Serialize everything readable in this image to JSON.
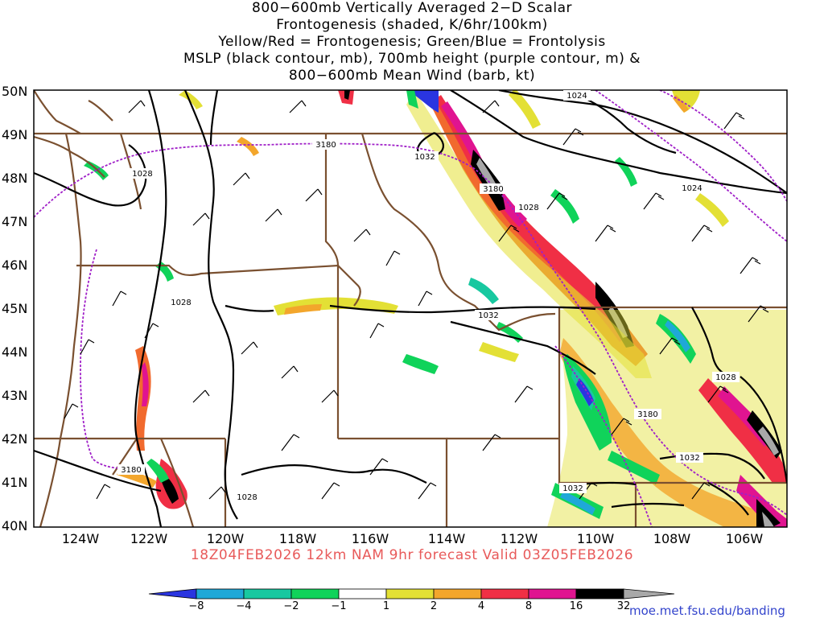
{
  "title": {
    "lines": [
      "800−600mb Vertically Averaged 2−D Scalar",
      "Frontogenesis (shaded, K/6hr/100km)",
      "Yellow/Red = Frontogenesis;  Green/Blue = Frontolysis",
      "MSLP (black contour, mb), 700mb height (purple contour, m) &",
      "800−600mb Mean Wind (barb, kt)"
    ]
  },
  "lat_labels": [
    "50N",
    "49N",
    "48N",
    "47N",
    "46N",
    "45N",
    "44N",
    "43N",
    "42N",
    "41N",
    "40N"
  ],
  "lon_labels": [
    "124W",
    "122W",
    "120W",
    "118W",
    "116W",
    "114W",
    "112W",
    "110W",
    "108W",
    "106W"
  ],
  "contour_labels": {
    "mslp": [
      "1024",
      "1024",
      "1032",
      "1028",
      "1028",
      "1032",
      "1028",
      "1032",
      "1032",
      "1028",
      "1028"
    ],
    "height": [
      "3180",
      "3180",
      "3180",
      "3180"
    ]
  },
  "subtitle": "18Z04FEB2026 12km NAM 9hr forecast Valid 03Z05FEB2026",
  "colorbar": {
    "labels": [
      "−8",
      "−4",
      "−2",
      "−1",
      "1",
      "2",
      "4",
      "8",
      "16",
      "32"
    ],
    "colors": [
      "#2a35e0",
      "#1fa8d8",
      "#18c8a0",
      "#10d35a",
      "#12e012",
      "#ffffff",
      "#e3e035",
      "#f3a62c",
      "#f16a2e",
      "#f02f45",
      "#e01490",
      "#000000",
      "#a8a8a8"
    ]
  },
  "credit": "moe.met.fsu.edu/banding",
  "colors": {
    "border": "#7a5030",
    "mslp": "#000000",
    "height": "#a020c8",
    "subtitle": "#e85a5a",
    "credit": "#3344cc"
  }
}
